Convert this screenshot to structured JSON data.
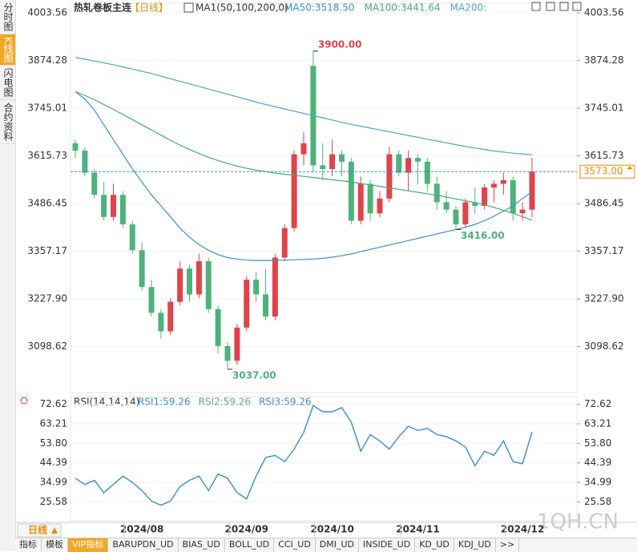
{
  "sidebar_tabs": [
    "分时图",
    "K线图",
    "闪电图",
    "合约资料"
  ],
  "header": {
    "title": "热轧卷板主连",
    "period": "【日线】",
    "indicator": "MA1(50,100,200,0)"
  },
  "rsi_header": "RSI(14,14,14)",
  "period_button": "日线",
  "footer_tabs": [
    "指标",
    "模板",
    "VIP指标",
    "BARUPDN_UD",
    "BIAS_UD",
    "BOLL_UD",
    "CCI_UD",
    "DMI_UD",
    "INSIDE_UD",
    "KD_UD",
    "KDJ_UD",
    ">>"
  ],
  "watermark": "1QH.CN",
  "chart_data": [
    {
      "type": "candlestick",
      "categories": [
        null,
        null,
        null,
        null,
        null,
        null,
        null,
        "2024/08",
        null,
        null,
        null,
        null,
        null,
        null,
        null,
        null,
        null,
        null,
        "2024/09",
        null,
        null,
        null,
        null,
        null,
        null,
        null,
        null,
        "2024/10",
        null,
        null,
        null,
        null,
        null,
        null,
        null,
        null,
        "2024/11",
        null,
        null,
        null,
        null,
        null,
        null,
        null,
        null,
        null,
        null,
        "2024/12",
        null
      ],
      "up_color": "#e0434b",
      "down_color": "#4fb27a",
      "candles": [
        [
          3650,
          3660,
          3610,
          3630
        ],
        [
          3630,
          3640,
          3560,
          3570
        ],
        [
          3570,
          3580,
          3500,
          3510
        ],
        [
          3510,
          3545,
          3440,
          3450
        ],
        [
          3450,
          3540,
          3440,
          3510
        ],
        [
          3510,
          3520,
          3420,
          3430
        ],
        [
          3430,
          3440,
          3350,
          3360
        ],
        [
          3360,
          3380,
          3250,
          3260
        ],
        [
          3260,
          3280,
          3180,
          3190
        ],
        [
          3190,
          3200,
          3120,
          3140
        ],
        [
          3140,
          3230,
          3130,
          3220
        ],
        [
          3220,
          3330,
          3210,
          3310
        ],
        [
          3310,
          3320,
          3220,
          3240
        ],
        [
          3240,
          3350,
          3230,
          3330
        ],
        [
          3330,
          3340,
          3190,
          3200
        ],
        [
          3200,
          3210,
          3080,
          3100
        ],
        [
          3100,
          3110,
          3037,
          3060
        ],
        [
          3060,
          3160,
          3050,
          3150
        ],
        [
          3150,
          3290,
          3140,
          3280
        ],
        [
          3280,
          3300,
          3220,
          3240
        ],
        [
          3240,
          3310,
          3170,
          3180
        ],
        [
          3180,
          3350,
          3170,
          3340
        ],
        [
          3340,
          3430,
          3330,
          3420
        ],
        [
          3420,
          3630,
          3410,
          3620
        ],
        [
          3620,
          3680,
          3590,
          3650
        ],
        [
          3860,
          3900,
          3570,
          3590
        ],
        [
          3590,
          3650,
          3550,
          3580
        ],
        [
          3580,
          3660,
          3560,
          3620
        ],
        [
          3620,
          3630,
          3560,
          3600
        ],
        [
          3600,
          3610,
          3430,
          3440
        ],
        [
          3440,
          3560,
          3430,
          3540
        ],
        [
          3540,
          3550,
          3440,
          3460
        ],
        [
          3460,
          3520,
          3450,
          3500
        ],
        [
          3500,
          3640,
          3490,
          3620
        ],
        [
          3620,
          3630,
          3560,
          3570
        ],
        [
          3570,
          3630,
          3520,
          3610
        ],
        [
          3610,
          3620,
          3540,
          3600
        ],
        [
          3600,
          3610,
          3520,
          3540
        ],
        [
          3540,
          3560,
          3470,
          3490
        ],
        [
          3490,
          3520,
          3460,
          3470
        ],
        [
          3470,
          3480,
          3416,
          3430
        ],
        [
          3430,
          3500,
          3420,
          3490
        ],
        [
          3490,
          3530,
          3460,
          3480
        ],
        [
          3480,
          3540,
          3470,
          3530
        ],
        [
          3530,
          3550,
          3490,
          3540
        ],
        [
          3540,
          3570,
          3510,
          3550
        ],
        [
          3550,
          3560,
          3440,
          3460
        ],
        [
          3460,
          3490,
          3440,
          3470
        ],
        [
          3470,
          3610,
          3450,
          3573
        ]
      ],
      "series": [
        {
          "name": "MA50:3518.50",
          "color": "#3a8fd6",
          "values": [
            3790,
            3770,
            3740,
            3700,
            3660,
            3620,
            3580,
            3545,
            3510,
            3480,
            3450,
            3420,
            3395,
            3375,
            3360,
            3348,
            3340,
            3336,
            3333,
            3332,
            3332,
            3332,
            3333,
            3334,
            3335,
            3336,
            3338,
            3341,
            3345,
            3350,
            3356,
            3362,
            3368,
            3374,
            3380,
            3386,
            3392,
            3398,
            3404,
            3410,
            3416,
            3422,
            3430,
            3440,
            3452,
            3466,
            3480,
            3500,
            3518.5
          ]
        },
        {
          "name": "MA100:3441.64",
          "color": "#3fae7a",
          "values": [
            3790,
            3780,
            3768,
            3755,
            3742,
            3728,
            3714,
            3700,
            3686,
            3672,
            3658,
            3645,
            3633,
            3622,
            3612,
            3603,
            3595,
            3588,
            3582,
            3577,
            3573,
            3569,
            3566,
            3563,
            3560,
            3557,
            3554,
            3551,
            3548,
            3545,
            3541,
            3537,
            3533,
            3529,
            3525,
            3521,
            3517,
            3513,
            3509,
            3504,
            3499,
            3494,
            3489,
            3483,
            3476,
            3468,
            3460,
            3451,
            3441.64
          ]
        },
        {
          "name": "MA200:",
          "color": "#4aa8c9",
          "values": [
            3883,
            3878,
            3873,
            3868,
            3863,
            3857,
            3851,
            3845,
            3839,
            3832,
            3825,
            3818,
            3811,
            3804,
            3797,
            3790,
            3783,
            3776,
            3769,
            3762,
            3755,
            3749,
            3743,
            3737,
            3731,
            3725,
            3719,
            3713,
            3707,
            3701,
            3696,
            3691,
            3686,
            3681,
            3676,
            3671,
            3666,
            3661,
            3656,
            3651,
            3646,
            3641,
            3637,
            3633,
            3629,
            3626,
            3623,
            3621,
            3619
          ]
        }
      ],
      "ylim": [
        2973.75,
        4029.85
      ],
      "yticks": [
        4003.56,
        3874.28,
        3745.01,
        3615.73,
        3486.45,
        3357.17,
        {
          "value": 3227.9,
          "label": "3227.90"
        },
        3098.62
      ],
      "last_price": {
        "value": 3573,
        "label": "3573.00"
      },
      "annotations": [
        {
          "value": 3900,
          "label": "3900.00",
          "color": "#e0434b"
        },
        {
          "value": 3037,
          "label": "3037.00",
          "color": "#4fb27a"
        },
        {
          "value": 3416,
          "label": "3416.00",
          "color": "#4fb27a"
        }
      ]
    },
    {
      "type": "line",
      "series": [
        {
          "name": "RSI1:59.26",
          "color": "#3a8fd6",
          "values": [
            37,
            34,
            36,
            30,
            34,
            38,
            35,
            31,
            26,
            24,
            26,
            33,
            36,
            38,
            31,
            39,
            37,
            30,
            27,
            38,
            47,
            48,
            45,
            51,
            59,
            72,
            69,
            69,
            71,
            64,
            50,
            58,
            55,
            51,
            57,
            62,
            60,
            61,
            58,
            57,
            55,
            52,
            43,
            50,
            48,
            55,
            45,
            44,
            59.26
          ]
        },
        {
          "name": "RSI2:59.26",
          "color": "#5bb08a",
          "values": [
            37,
            34,
            36,
            30,
            34,
            38,
            35,
            31,
            26,
            24,
            26,
            33,
            36,
            38,
            31,
            39,
            37,
            30,
            27,
            38,
            47,
            48,
            45,
            51,
            59,
            72,
            69,
            69,
            71,
            64,
            50,
            58,
            55,
            51,
            57,
            62,
            60,
            61,
            58,
            57,
            55,
            52,
            43,
            50,
            48,
            55,
            45,
            44,
            59.26
          ]
        },
        {
          "name": "RSI3:59.26",
          "color": "#3a8fd6",
          "values": [
            37,
            34,
            36,
            30,
            34,
            38,
            35,
            31,
            26,
            24,
            26,
            33,
            36,
            38,
            31,
            39,
            37,
            30,
            27,
            38,
            47,
            48,
            45,
            51,
            59,
            72,
            69,
            69,
            71,
            64,
            50,
            58,
            55,
            51,
            57,
            62,
            60,
            61,
            58,
            57,
            55,
            52,
            43,
            50,
            48,
            55,
            45,
            44,
            59.26
          ]
        }
      ],
      "ylim": [
        16.5,
        76.33
      ],
      "yticks": [
        72.62,
        63.21,
        {
          "value": 53.8,
          "label": "53.80"
        },
        44.39,
        34.99,
        25.58
      ]
    }
  ]
}
